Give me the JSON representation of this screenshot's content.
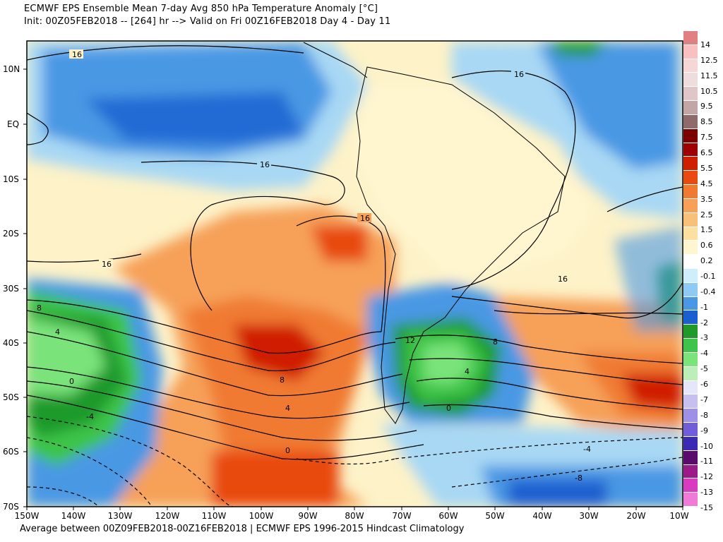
{
  "header": {
    "title_line1": "ECMWF EPS Ensemble Mean 7-day Avg 850 hPa Temperature Anomaly [°C]",
    "title_line2": "Init: 00Z05FEB2018 -- [264] hr --> Valid on Fri 00Z16FEB2018  Day 4 - Day 11"
  },
  "footer": {
    "text": "Average between 00Z09FEB2018-00Z16FEB2018 | ECMWF EPS 1996-2015 Hindcast Climatology"
  },
  "map": {
    "lat_labels": [
      "10N",
      "EQ",
      "10S",
      "20S",
      "30S",
      "40S",
      "50S",
      "60S",
      "70S"
    ],
    "lon_labels": [
      "150W",
      "140W",
      "130W",
      "120W",
      "110W",
      "100W",
      "90W",
      "80W",
      "70W",
      "60W",
      "50W",
      "40W",
      "30W",
      "20W",
      "10W"
    ],
    "contour_labels": {
      "c1": "16",
      "c2": "16",
      "c3": "16",
      "c4": "16",
      "c5": "16",
      "c6": "16",
      "c7": "8",
      "c8": "4",
      "c9": "0",
      "c10": "-4",
      "c11": "8",
      "c12": "4",
      "c13": "0",
      "c14": "12",
      "c15": "8",
      "c16": "4",
      "c17": "0",
      "c18": "-4",
      "c19": "-8"
    }
  },
  "colorbar": {
    "labels": [
      "14",
      "12.5",
      "11.5",
      "10.5",
      "9.5",
      "8.5",
      "7.5",
      "6.5",
      "5.5",
      "4.5",
      "3.5",
      "2.5",
      "1.5",
      "0.6",
      "0.2",
      "-0.1",
      "-0.4",
      "-1",
      "-2",
      "-3",
      "-4",
      "-5",
      "-6",
      "-7",
      "-8",
      "-9",
      "-10",
      "-11",
      "-12",
      "-13",
      "-15"
    ],
    "colors": [
      "#e08080",
      "#f8c0c0",
      "#f7d6d6",
      "#efdcdc",
      "#e0c6c6",
      "#c2a6a6",
      "#8e6a6a",
      "#7a0000",
      "#a00000",
      "#d01e00",
      "#e84a10",
      "#f07a30",
      "#f6a058",
      "#f8c078",
      "#fbe0a0",
      "#fff6d0",
      "#ffffff",
      "#cfeefc",
      "#8fcaf4",
      "#4a98e4",
      "#1a5fd0",
      "#1f9a2a",
      "#3ec44a",
      "#7ae47a",
      "#bcefb8",
      "#e6e6fa",
      "#c7bff0",
      "#9e90e6",
      "#6f5ed8",
      "#3a2ab4",
      "#5a0a6a",
      "#9a1a8a",
      "#d83ac0",
      "#f07ad8"
    ]
  }
}
